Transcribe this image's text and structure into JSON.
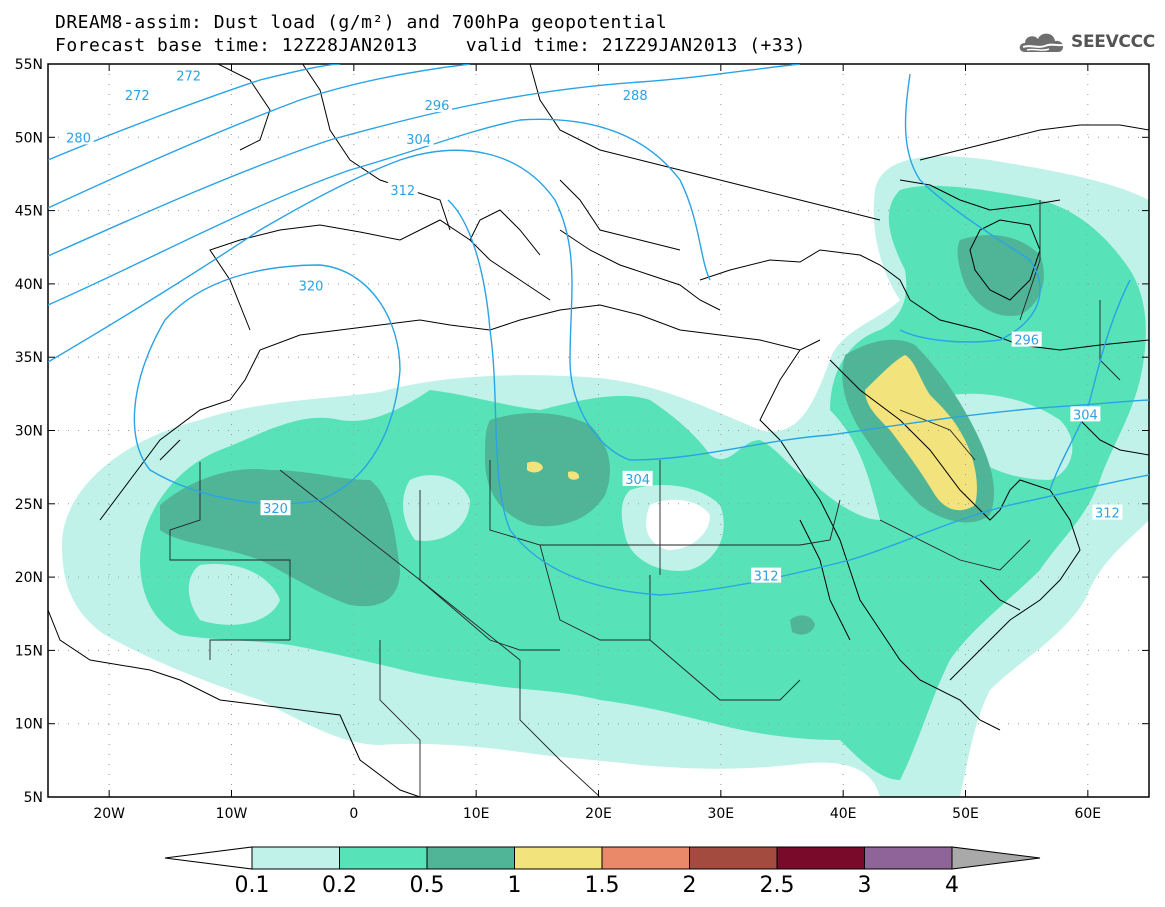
{
  "title": {
    "line1": "DREAM8-assim: Dust load (g/m²) and 700hPa geopotential",
    "base_time": "Forecast base time: 12Z28JAN2013",
    "valid_time": "valid time: 21Z29JAN2013 (+33)"
  },
  "logo": {
    "text": "SEEVCCC",
    "icon": "cloud-icon"
  },
  "map": {
    "lon_range": [
      -25,
      65
    ],
    "lat_range": [
      5,
      55
    ],
    "lon_ticks": [
      {
        "v": -20,
        "label": "20W"
      },
      {
        "v": -10,
        "label": "10W"
      },
      {
        "v": 0,
        "label": "0"
      },
      {
        "v": 10,
        "label": "10E"
      },
      {
        "v": 20,
        "label": "20E"
      },
      {
        "v": 30,
        "label": "30E"
      },
      {
        "v": 40,
        "label": "40E"
      },
      {
        "v": 50,
        "label": "50E"
      },
      {
        "v": 60,
        "label": "60E"
      }
    ],
    "lat_ticks": [
      {
        "v": 55,
        "label": "55N"
      },
      {
        "v": 50,
        "label": "50N"
      },
      {
        "v": 45,
        "label": "45N"
      },
      {
        "v": 40,
        "label": "40N"
      },
      {
        "v": 35,
        "label": "35N"
      },
      {
        "v": 30,
        "label": "30N"
      },
      {
        "v": 25,
        "label": "25N"
      },
      {
        "v": 20,
        "label": "20N"
      },
      {
        "v": 15,
        "label": "15N"
      },
      {
        "v": 10,
        "label": "10N"
      },
      {
        "v": 5,
        "label": "5N"
      }
    ],
    "contour_color": "#2aa3e6",
    "contour_labels": [
      {
        "text": "272",
        "lon": -17.7,
        "lat": 52.9
      },
      {
        "text": "272",
        "lon": -13.5,
        "lat": 54.2
      },
      {
        "text": "280",
        "lon": -22.5,
        "lat": 50.0
      },
      {
        "text": "288",
        "lon": 23.0,
        "lat": 52.9
      },
      {
        "text": "296",
        "lon": 6.8,
        "lat": 52.2
      },
      {
        "text": "304",
        "lon": 5.3,
        "lat": 49.9
      },
      {
        "text": "312",
        "lon": 4.0,
        "lat": 46.4
      },
      {
        "text": "320",
        "lon": -3.5,
        "lat": 39.9
      },
      {
        "text": "320",
        "lon": -6.4,
        "lat": 24.7
      },
      {
        "text": "304",
        "lon": 23.2,
        "lat": 26.7
      },
      {
        "text": "312",
        "lon": 33.7,
        "lat": 20.1
      },
      {
        "text": "296",
        "lon": 55.0,
        "lat": 36.2
      },
      {
        "text": "304",
        "lon": 59.8,
        "lat": 31.1
      },
      {
        "text": "312",
        "lon": 61.6,
        "lat": 24.4
      }
    ]
  },
  "colorbar": {
    "colors": [
      "#c0f2ea",
      "#58e2b8",
      "#50b596",
      "#f2e37c",
      "#e9896a",
      "#a24b3e",
      "#790a2a",
      "#8f6499"
    ],
    "left_arrow_color": "#ffffff",
    "right_arrow_color": "#a9a9a9",
    "labels": [
      "0.1",
      "0.2",
      "0.5",
      "1",
      "1.5",
      "2",
      "2.5",
      "3",
      "4"
    ]
  }
}
